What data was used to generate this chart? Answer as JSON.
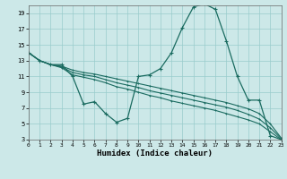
{
  "xlabel": "Humidex (Indice chaleur)",
  "bg_color": "#cce8e8",
  "grid_color": "#99cccc",
  "line_color": "#1a6b60",
  "xlim": [
    0,
    23
  ],
  "ylim": [
    3,
    20
  ],
  "yticks": [
    3,
    5,
    7,
    9,
    11,
    13,
    15,
    17,
    19
  ],
  "xticks": [
    0,
    1,
    2,
    3,
    4,
    5,
    6,
    7,
    8,
    9,
    10,
    11,
    12,
    13,
    14,
    15,
    16,
    17,
    18,
    19,
    20,
    21,
    22,
    23
  ],
  "series_zigzag": [
    14.0,
    13.0,
    12.5,
    12.5,
    11.0,
    7.5,
    7.8,
    6.3,
    5.2,
    5.7,
    11.0,
    11.2,
    12.0,
    14.0,
    17.2,
    19.8,
    20.2,
    19.5,
    15.5,
    11.0,
    8.0,
    8.0,
    3.5,
    3.0
  ],
  "series_line1": [
    14.0,
    13.0,
    12.5,
    12.3,
    11.8,
    11.5,
    11.3,
    11.0,
    10.7,
    10.4,
    10.1,
    9.8,
    9.5,
    9.2,
    8.9,
    8.6,
    8.3,
    8.0,
    7.7,
    7.3,
    6.9,
    6.3,
    5.0,
    3.2
  ],
  "series_line2": [
    14.0,
    13.0,
    12.5,
    12.2,
    11.5,
    11.2,
    11.0,
    10.6,
    10.2,
    9.9,
    9.6,
    9.2,
    8.9,
    8.6,
    8.3,
    8.0,
    7.7,
    7.4,
    7.1,
    6.7,
    6.2,
    5.6,
    4.5,
    3.1
  ],
  "series_line3": [
    14.0,
    13.0,
    12.5,
    12.1,
    11.2,
    10.9,
    10.6,
    10.2,
    9.7,
    9.4,
    9.0,
    8.6,
    8.3,
    7.9,
    7.6,
    7.3,
    7.0,
    6.7,
    6.3,
    5.9,
    5.5,
    5.0,
    4.0,
    3.0
  ]
}
